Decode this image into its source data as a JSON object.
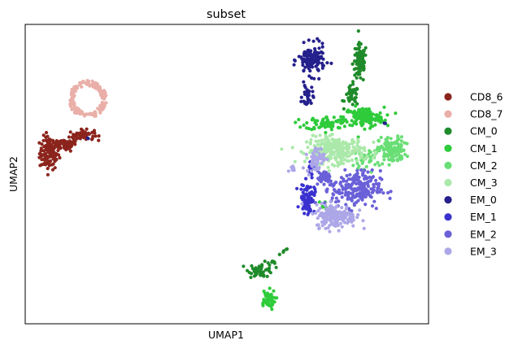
{
  "chart_data": {
    "type": "scatter",
    "title": "subset",
    "xlabel": "UMAP1",
    "ylabel": "UMAP2",
    "axis_ticks": false,
    "grid": false,
    "legend_position": "right",
    "xlim": [
      0,
      100
    ],
    "ylim": [
      0,
      100
    ],
    "series": [
      {
        "name": "CD8_6",
        "color": "#8b241c",
        "regions": [
          {
            "type": "blob",
            "x": 6,
            "y": 57,
            "rx": 2.2,
            "ry": 5,
            "n": 120
          },
          {
            "type": "blob",
            "x": 10,
            "y": 60,
            "rx": 2.5,
            "ry": 2,
            "n": 60
          },
          {
            "type": "blob",
            "x": 14,
            "y": 63,
            "rx": 2.8,
            "ry": 1.6,
            "n": 60
          }
        ]
      },
      {
        "name": "CD8_7",
        "color": "#e9afa8",
        "regions": [
          {
            "type": "ring",
            "x": 15.5,
            "y": 75,
            "rx": 4.5,
            "ry": 6,
            "n": 160
          }
        ]
      },
      {
        "name": "CM_0",
        "color": "#1f8b2a",
        "regions": [
          {
            "type": "blob",
            "x": 83,
            "y": 87,
            "rx": 1.6,
            "ry": 6,
            "n": 90
          },
          {
            "type": "blob",
            "x": 81,
            "y": 76,
            "rx": 1.6,
            "ry": 3,
            "n": 40
          },
          {
            "type": "blob",
            "x": 58.5,
            "y": 18,
            "rx": 2.8,
            "ry": 2.2,
            "n": 50
          },
          {
            "type": "line",
            "x": [
              61,
              65
            ],
            "y": [
              20,
              25
            ],
            "n": 12
          }
        ]
      },
      {
        "name": "CM_1",
        "color": "#2ecb3a",
        "regions": [
          {
            "type": "blob",
            "x": 84,
            "y": 69,
            "rx": 4.5,
            "ry": 3,
            "n": 140
          },
          {
            "type": "blob",
            "x": 75,
            "y": 67,
            "rx": 5,
            "ry": 2,
            "n": 70
          },
          {
            "type": "blob",
            "x": 60,
            "y": 8,
            "rx": 1.8,
            "ry": 3,
            "n": 50
          },
          {
            "type": "blob",
            "x": 74,
            "y": 39,
            "rx": 1.5,
            "ry": 2,
            "n": 10
          }
        ]
      },
      {
        "name": "CM_2",
        "color": "#69de75",
        "regions": [
          {
            "type": "blob",
            "x": 91,
            "y": 58,
            "rx": 3,
            "ry": 4,
            "n": 130
          },
          {
            "type": "blob",
            "x": 85,
            "y": 55,
            "rx": 3,
            "ry": 3,
            "n": 40
          }
        ]
      },
      {
        "name": "CM_3",
        "color": "#abe9aa",
        "regions": [
          {
            "type": "blob",
            "x": 77,
            "y": 58,
            "rx": 6.5,
            "ry": 4,
            "n": 260
          }
        ]
      },
      {
        "name": "EM_0",
        "color": "#24208c",
        "regions": [
          {
            "type": "blob",
            "x": 71,
            "y": 88,
            "rx": 3,
            "ry": 4.5,
            "n": 130
          },
          {
            "type": "blob",
            "x": 70,
            "y": 76,
            "rx": 1.2,
            "ry": 3.5,
            "n": 30
          },
          {
            "type": "blob",
            "x": 15.5,
            "y": 62,
            "rx": 0.3,
            "ry": 0.4,
            "n": 2
          },
          {
            "type": "blob",
            "x": 89,
            "y": 67,
            "rx": 0.4,
            "ry": 0.4,
            "n": 2
          }
        ]
      },
      {
        "name": "EM_1",
        "color": "#3a31cf",
        "regions": [
          {
            "type": "blob",
            "x": 70,
            "y": 42,
            "rx": 1.6,
            "ry": 4.5,
            "n": 80
          },
          {
            "type": "blob",
            "x": 71,
            "y": 52,
            "rx": 1.2,
            "ry": 2.5,
            "n": 20
          }
        ]
      },
      {
        "name": "EM_2",
        "color": "#6a60d8",
        "regions": [
          {
            "type": "blob",
            "x": 82,
            "y": 45,
            "rx": 5.5,
            "ry": 5.5,
            "n": 220
          },
          {
            "type": "blob",
            "x": 74,
            "y": 49,
            "rx": 2.5,
            "ry": 2.5,
            "n": 40
          }
        ]
      },
      {
        "name": "EM_3",
        "color": "#ada7e8",
        "regions": [
          {
            "type": "blob",
            "x": 77,
            "y": 36,
            "rx": 4.5,
            "ry": 3.5,
            "n": 180
          },
          {
            "type": "blob",
            "x": 72,
            "y": 55,
            "rx": 2,
            "ry": 4,
            "n": 60
          },
          {
            "type": "blob",
            "x": 66,
            "y": 52,
            "rx": 1.2,
            "ry": 0.6,
            "n": 8
          }
        ]
      }
    ]
  }
}
